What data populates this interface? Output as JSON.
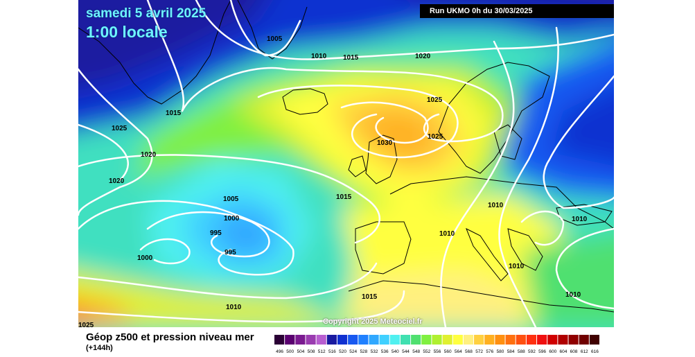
{
  "header": {
    "date": "samedi 5 avril 2025",
    "time": "1:00 locale",
    "run": "Run UKMO 0h du 30/03/2025"
  },
  "footer": {
    "title": "Géop z500 et pression niveau mer",
    "forecast": "(+144h)",
    "copyright": "Copyright 2025 Meteociel.fr"
  },
  "isobar_labels": [
    "1005",
    "1010",
    "1015",
    "1020",
    "1025",
    "1030",
    "1030",
    "1025",
    "1015",
    "1020",
    "1025",
    "1020",
    "1020",
    "1005",
    "1000",
    "995",
    "995",
    "1000",
    "1015",
    "1010",
    "1010",
    "1010",
    "1010",
    "1010",
    "1015",
    "1010",
    "1025"
  ],
  "legend": {
    "values": [
      "496",
      "500",
      "504",
      "508",
      "512",
      "516",
      "520",
      "524",
      "528",
      "532",
      "536",
      "540",
      "544",
      "548",
      "552",
      "556",
      "560",
      "564",
      "568",
      "572",
      "576",
      "580",
      "584",
      "588",
      "592",
      "596",
      "600",
      "604",
      "608",
      "612",
      "616"
    ],
    "colors": [
      "#2b0035",
      "#5a0070",
      "#7a1a90",
      "#9a3cb0",
      "#b85ed0",
      "#1a1aa0",
      "#1030d0",
      "#1858f0",
      "#2080ff",
      "#30a8ff",
      "#40d0ff",
      "#50f0f0",
      "#40e0b0",
      "#50e070",
      "#80f040",
      "#b0f030",
      "#e0f030",
      "#ffff40",
      "#fff080",
      "#ffd040",
      "#ffb020",
      "#ff9010",
      "#ff7010",
      "#ff5010",
      "#ff3010",
      "#f01010",
      "#d00000",
      "#b00000",
      "#900000",
      "#700000",
      "#400000"
    ]
  },
  "colors": {
    "title": "#6ef3ff",
    "isobar": "#ffffff",
    "coast": "#000000"
  }
}
